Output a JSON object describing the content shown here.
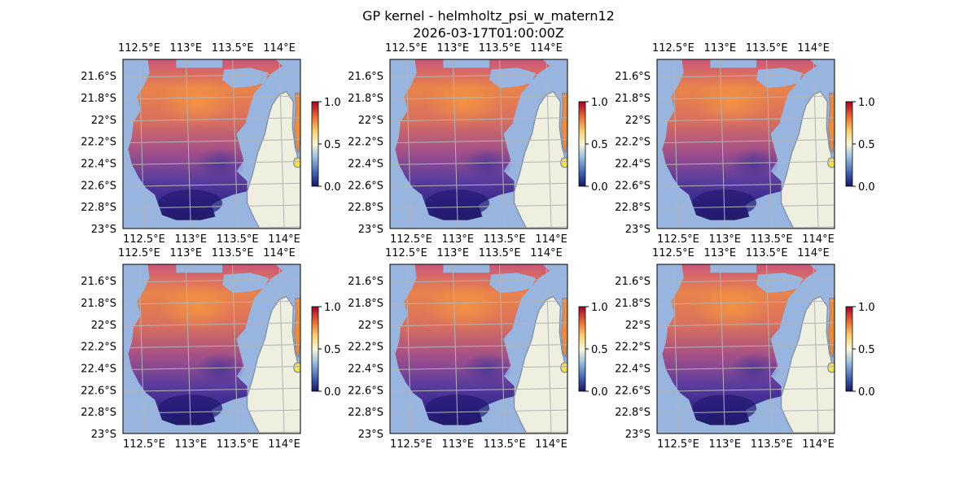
{
  "figure": {
    "title": "GP kernel - helmholtz_psi_w_matern12",
    "subtitle": "2026-03-17T01:00:00Z"
  },
  "colors": {
    "ocean": "#98b5e0",
    "land": "#efefdf",
    "coast": "#7d8aa0",
    "grid": "#b3b3b3"
  },
  "chart_data": {
    "type": "heatmap",
    "layout": "2x3 grid of map panels, each with a colorbar",
    "x_ticks": [
      "112.5°E",
      "113°E",
      "113.5°E",
      "114°E"
    ],
    "x_tick_values": [
      112.5,
      113.0,
      113.5,
      114.0
    ],
    "y_ticks": [
      "21.6°S",
      "21.8°S",
      "22°S",
      "22.2°S",
      "22.4°S",
      "22.6°S",
      "22.8°S",
      "23°S"
    ],
    "y_tick_values": [
      -21.6,
      -21.8,
      -22.0,
      -22.2,
      -22.4,
      -22.6,
      -22.8,
      -23.0
    ],
    "xlim": [
      112.3,
      114.2
    ],
    "ylim": [
      -23.0,
      -21.45
    ],
    "colorbar": {
      "range": [
        0.0,
        1.0
      ],
      "ticks": [
        "0.0",
        "0.5",
        "1.0"
      ],
      "colormap": "RdYlBu_r"
    },
    "grid": true,
    "panels": 6
  }
}
